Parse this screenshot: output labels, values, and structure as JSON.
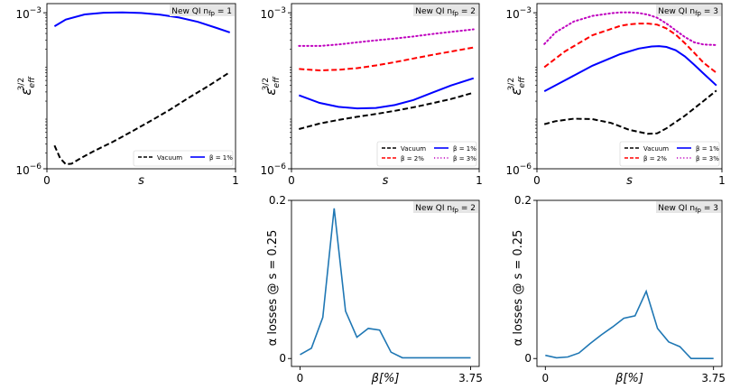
{
  "chart_data": [
    {
      "id": "nfp1_eps",
      "type": "line",
      "annotation": "New QI $n_{fp} = 1$",
      "annotation_text": "New QI nfp = 1",
      "xlabel": "s",
      "ylabel": "ε_eff^{3/2}",
      "xscale": "linear",
      "yscale": "log",
      "xlim": [
        0,
        1
      ],
      "ylim": [
        1e-06,
        0.0015
      ],
      "xticks": [
        0,
        1
      ],
      "xtick_labels": [
        "0",
        "1"
      ],
      "yticks": [
        1e-06,
        0.001
      ],
      "ytick_labels": [
        "10−6",
        "10−3"
      ],
      "legend_position": "lower-right",
      "series": [
        {
          "name": "Vacuum",
          "legend": "Vacuum",
          "color": "#000000",
          "dash": "dashed",
          "x": [
            0.04,
            0.07,
            0.1,
            0.13,
            0.18,
            0.25,
            0.35,
            0.45,
            0.55,
            0.65,
            0.75,
            0.85,
            0.97
          ],
          "y": [
            2.8e-06,
            1.6e-06,
            1.22e-06,
            1.25e-06,
            1.6e-06,
            2.2e-06,
            3.3e-06,
            5.2e-06,
            8.3e-06,
            1.35e-05,
            2.3e-05,
            3.8e-05,
            7.2e-05
          ]
        },
        {
          "name": "β = 1%",
          "legend": "$\\beta = 1\\%$",
          "legend_text": "β = 1%",
          "color": "#0000ff",
          "dash": "solid",
          "x": [
            0.04,
            0.1,
            0.2,
            0.3,
            0.4,
            0.5,
            0.6,
            0.7,
            0.8,
            0.9,
            0.97
          ],
          "y": [
            0.00055,
            0.00074,
            0.00093,
            0.001,
            0.00102,
            0.00099,
            0.00092,
            0.00081,
            0.00067,
            0.00051,
            0.00042
          ]
        }
      ]
    },
    {
      "id": "nfp2_eps",
      "type": "line",
      "annotation": "New QI $n_{fp} = 2$",
      "annotation_text": "New QI nfp = 2",
      "xlabel": "s",
      "ylabel": "ε_eff^{3/2}",
      "xscale": "linear",
      "yscale": "log",
      "xlim": [
        0,
        1
      ],
      "ylim": [
        1e-06,
        0.0015
      ],
      "xticks": [
        0,
        1
      ],
      "xtick_labels": [
        "0",
        "1"
      ],
      "yticks": [
        1e-06,
        0.001
      ],
      "ytick_labels": [
        "10−6",
        "10−3"
      ],
      "legend_position": "lower-right",
      "series": [
        {
          "name": "Vacuum",
          "legend": "Vacuum",
          "color": "#000000",
          "dash": "dashed",
          "x": [
            0.04,
            0.15,
            0.25,
            0.35,
            0.45,
            0.55,
            0.65,
            0.75,
            0.85,
            0.97
          ],
          "y": [
            5.8e-06,
            7.4e-06,
            8.7e-06,
            1e-05,
            1.13e-05,
            1.3e-05,
            1.52e-05,
            1.82e-05,
            2.2e-05,
            2.9e-05
          ]
        },
        {
          "name": "β = 1%",
          "legend": "$\\beta = 1\\%$",
          "legend_text": "β = 1%",
          "color": "#0000ff",
          "dash": "solid",
          "x": [
            0.04,
            0.15,
            0.25,
            0.35,
            0.45,
            0.55,
            0.65,
            0.75,
            0.85,
            0.97
          ],
          "y": [
            2.6e-05,
            1.85e-05,
            1.55e-05,
            1.45e-05,
            1.48e-05,
            1.68e-05,
            2.1e-05,
            2.9e-05,
            4e-05,
            5.5e-05
          ]
        },
        {
          "name": "β = 2%",
          "legend": "$\\beta = 2\\%$",
          "legend_text": "β = 2%",
          "color": "#ff0000",
          "dash": "dashed",
          "x": [
            0.04,
            0.15,
            0.25,
            0.35,
            0.45,
            0.55,
            0.65,
            0.75,
            0.85,
            0.97
          ],
          "y": [
            8.3e-05,
            7.8e-05,
            8e-05,
            8.6e-05,
            9.7e-05,
            0.000112,
            0.000132,
            0.000155,
            0.00018,
            0.000215
          ]
        },
        {
          "name": "β = 3%",
          "legend": "$\\beta = 3\\%$",
          "legend_text": "β = 3%",
          "color": "#bf00bf",
          "dash": "dotted",
          "x": [
            0.04,
            0.15,
            0.25,
            0.35,
            0.45,
            0.55,
            0.65,
            0.75,
            0.85,
            0.97
          ],
          "y": [
            0.00023,
            0.00023,
            0.000245,
            0.00027,
            0.000295,
            0.00032,
            0.00035,
            0.00039,
            0.00043,
            0.00048
          ]
        }
      ]
    },
    {
      "id": "nfp3_eps",
      "type": "line",
      "annotation": "New QI $n_{fp} = 3$",
      "annotation_text": "New QI nfp = 3",
      "xlabel": "s",
      "ylabel": "ε_eff^{3/2}",
      "xscale": "linear",
      "yscale": "log",
      "xlim": [
        0,
        1
      ],
      "ylim": [
        1e-06,
        0.0015
      ],
      "xticks": [
        0,
        1
      ],
      "xtick_labels": [
        "0",
        "1"
      ],
      "yticks": [
        1e-06,
        0.001
      ],
      "ytick_labels": [
        "10−6",
        "10−3"
      ],
      "legend_position": "lower-right",
      "series": [
        {
          "name": "Vacuum",
          "legend": "Vacuum",
          "color": "#000000",
          "dash": "dashed",
          "x": [
            0.04,
            0.1,
            0.2,
            0.3,
            0.4,
            0.5,
            0.6,
            0.65,
            0.7,
            0.8,
            0.9,
            0.97
          ],
          "y": [
            7.2e-06,
            8.2e-06,
            9.2e-06,
            9e-06,
            7.6e-06,
            5.6e-06,
            4.7e-06,
            4.8e-06,
            6e-06,
            1.05e-05,
            2e-05,
            3.2e-05
          ]
        },
        {
          "name": "β = 1%",
          "legend": "$\\beta = 1\\%$",
          "legend_text": "β = 1%",
          "color": "#0000ff",
          "dash": "solid",
          "x": [
            0.04,
            0.15,
            0.3,
            0.45,
            0.55,
            0.62,
            0.66,
            0.7,
            0.75,
            0.8,
            0.85,
            0.9,
            0.97
          ],
          "y": [
            3.1e-05,
            5e-05,
            9.6e-05,
            0.00016,
            0.000205,
            0.000225,
            0.000228,
            0.00022,
            0.00019,
            0.000145,
            0.0001,
            6.8e-05,
            4e-05
          ]
        },
        {
          "name": "β = 2%",
          "legend": "$\\beta = 2\\%$",
          "legend_text": "β = 2%",
          "color": "#ff0000",
          "dash": "dashed",
          "x": [
            0.04,
            0.15,
            0.3,
            0.45,
            0.5,
            0.55,
            0.6,
            0.65,
            0.7,
            0.75,
            0.8,
            0.85,
            0.9,
            0.97
          ],
          "y": [
            9e-05,
            0.00018,
            0.00037,
            0.00056,
            0.0006,
            0.00062,
            0.00062,
            0.00059,
            0.0005,
            0.00038,
            0.00026,
            0.00017,
            0.00011,
            7e-05
          ]
        },
        {
          "name": "β = 3%",
          "legend": "$\\beta = 3\\%$",
          "legend_text": "β = 3%",
          "color": "#bf00bf",
          "dash": "dotted",
          "x": [
            0.04,
            0.1,
            0.2,
            0.3,
            0.4,
            0.45,
            0.5,
            0.55,
            0.6,
            0.65,
            0.7,
            0.75,
            0.8,
            0.85,
            0.9,
            0.97
          ],
          "y": [
            0.00025,
            0.00042,
            0.00068,
            0.00087,
            0.00098,
            0.00102,
            0.00102,
            0.00099,
            0.00092,
            0.0008,
            0.00062,
            0.00046,
            0.00034,
            0.00027,
            0.000245,
            0.00024
          ]
        }
      ]
    },
    {
      "id": "nfp2_alpha",
      "type": "line",
      "annotation": "New QI $n_{fp} = 2$",
      "annotation_text": "New QI nfp = 2",
      "xlabel": "β[%]",
      "ylabel": "α losses @ s = 0.25",
      "xlim": [
        -0.1875,
        3.9375
      ],
      "ylim": [
        -0.01,
        0.2
      ],
      "xticks": [
        0,
        3.75
      ],
      "xtick_labels": [
        "0",
        "3.75"
      ],
      "yticks": [
        0,
        0.2
      ],
      "ytick_labels": [
        "0",
        "0.2"
      ],
      "series": [
        {
          "name": "alpha losses",
          "color": "#1f77b4",
          "dash": "solid",
          "x": [
            0,
            0.25,
            0.5,
            0.75,
            1.0,
            1.25,
            1.5,
            1.75,
            2.0,
            2.25,
            2.5,
            2.75,
            3.0,
            3.25,
            3.5,
            3.75
          ],
          "y": [
            0.005,
            0.013,
            0.052,
            0.19,
            0.06,
            0.027,
            0.038,
            0.036,
            0.008,
            0.001,
            0.001,
            0.001,
            0.001,
            0.001,
            0.001,
            0.001
          ]
        }
      ]
    },
    {
      "id": "nfp3_alpha",
      "type": "line",
      "annotation": "New QI $n_{fp} = 3$",
      "annotation_text": "New QI nfp = 3",
      "xlabel": "β[%]",
      "ylabel": "α losses @ s = 0.25",
      "xlim": [
        -0.1875,
        3.9375
      ],
      "ylim": [
        -0.01,
        0.2
      ],
      "xticks": [
        0,
        3.75
      ],
      "xtick_labels": [
        "0",
        "3.75"
      ],
      "yticks": [
        0,
        0.2
      ],
      "ytick_labels": [
        "0",
        "0.2"
      ],
      "series": [
        {
          "name": "alpha losses",
          "color": "#1f77b4",
          "dash": "solid",
          "x": [
            0,
            0.25,
            0.5,
            0.75,
            1.0,
            1.25,
            1.5,
            1.75,
            2.0,
            2.25,
            2.5,
            2.75,
            3.0,
            3.25,
            3.5,
            3.75
          ],
          "y": [
            0.004,
            0.001,
            0.002,
            0.007,
            0.019,
            0.03,
            0.04,
            0.051,
            0.054,
            0.085,
            0.038,
            0.021,
            0.015,
            0.0,
            0.0,
            0.0
          ]
        }
      ]
    }
  ]
}
